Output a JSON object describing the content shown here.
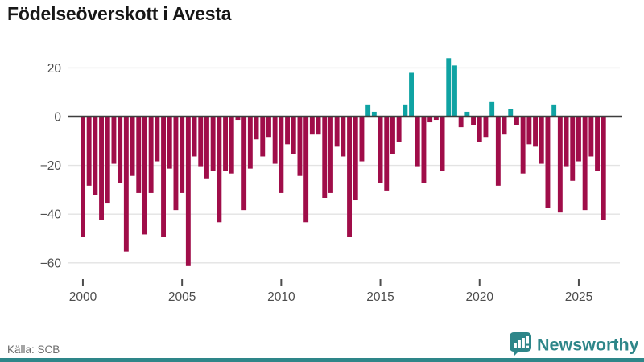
{
  "title": "Födelseöverskott i Avesta",
  "source": "Källa: SCB",
  "logo": {
    "text": "Newsworthy"
  },
  "colors": {
    "negative_bar": "#a00d49",
    "positive_bar": "#0fa3a3",
    "zero_line": "#3d3d3d",
    "gridline": "#e3e3e3",
    "axis_text": "#4d4d4d",
    "title_text": "#171717",
    "source_text": "#6b6b6b",
    "brand_teal": "#2e8689"
  },
  "chart_data": {
    "type": "bar",
    "title": "Födelseöverskott i Avesta",
    "xlabel": "",
    "ylabel": "",
    "grid": true,
    "legend": false,
    "ylim": [
      -66,
      26
    ],
    "y_ticks": [
      20,
      0,
      -20,
      -40,
      -60
    ],
    "x_tick_labels": [
      "2000",
      "2005",
      "2010",
      "2015",
      "2020",
      "2025"
    ],
    "x_tick_bar_indices": [
      0,
      16,
      32,
      48,
      64,
      80
    ],
    "values": [
      -49,
      -28,
      -32,
      -42,
      -35,
      -19,
      -27,
      -55,
      -24,
      -31,
      -48,
      -31,
      -18,
      -49,
      -21,
      -38,
      -31,
      -61,
      -16,
      -20,
      -25,
      -22,
      -43,
      -22,
      -23,
      -1,
      -38,
      -21,
      -9,
      -16,
      -8,
      -19,
      -31,
      -11,
      -15,
      -24,
      -43,
      -7,
      -7,
      -33,
      -31,
      -12,
      -16,
      -49,
      -34,
      -18,
      5,
      2,
      -27,
      -30,
      -15,
      -10,
      5,
      18,
      -20,
      -27,
      -2,
      -1,
      -22,
      24,
      21,
      -4,
      2,
      -3,
      -10,
      -8,
      6,
      -28,
      -7,
      3,
      -3,
      -23,
      -11,
      -12,
      -19,
      -37,
      5,
      -39,
      -20,
      -26,
      -18,
      -38,
      -16,
      -22,
      -42
    ]
  }
}
